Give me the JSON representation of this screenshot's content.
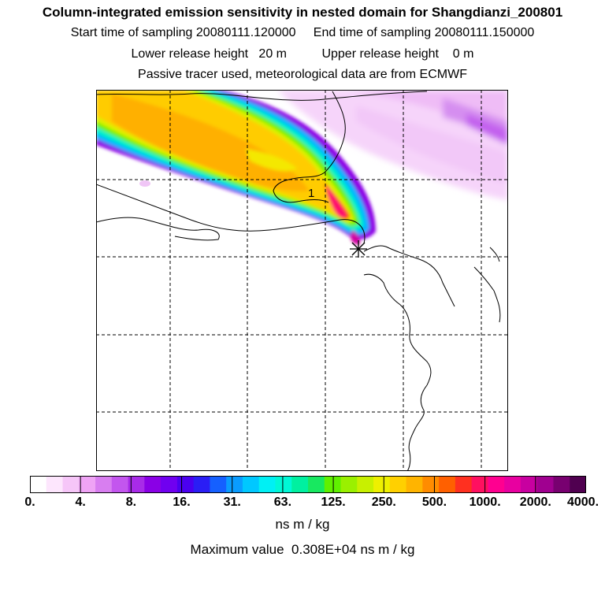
{
  "header": {
    "title": "Column-integrated emission sensitivity in nested domain for Shangdianzi_200801",
    "start_label": "Start time of sampling",
    "start_value": "20080111.120000",
    "end_label": "End time of sampling",
    "end_value": "20080111.150000",
    "lower_label": "Lower release height",
    "lower_value": "20 m",
    "upper_label": "Upper release height",
    "upper_value": "0 m",
    "note": "Passive tracer used, meteorological data are from ECMWF"
  },
  "map": {
    "release_marker_label": "1",
    "release_site_symbol": "*"
  },
  "colorbar": {
    "tick_labels": [
      "0.",
      "4.",
      "8.",
      "16.",
      "31.",
      "63.",
      "125.",
      "250.",
      "500.",
      "1000.",
      "2000.",
      "4000."
    ],
    "colors": [
      "#ffffff",
      "#fde6fd",
      "#f6c6f8",
      "#efa4f5",
      "#d87ef0",
      "#c356ee",
      "#a82be8",
      "#8a00e6",
      "#7000f0",
      "#4b00f0",
      "#2a1ef5",
      "#1560ff",
      "#0a9cff",
      "#00c8ff",
      "#00f0f4",
      "#00f8d6",
      "#00f0a0",
      "#18e860",
      "#60f000",
      "#9af000",
      "#c8f000",
      "#eef000",
      "#ffd000",
      "#ffb400",
      "#ff8c00",
      "#ff6000",
      "#ff3020",
      "#ff1060",
      "#ff0090",
      "#e800a0",
      "#c800a0",
      "#a00090",
      "#780070",
      "#500050"
    ],
    "units": "ns m / kg",
    "max_label": "Maximum value",
    "max_value": "0.308E+04",
    "max_units": "ns m / kg"
  }
}
